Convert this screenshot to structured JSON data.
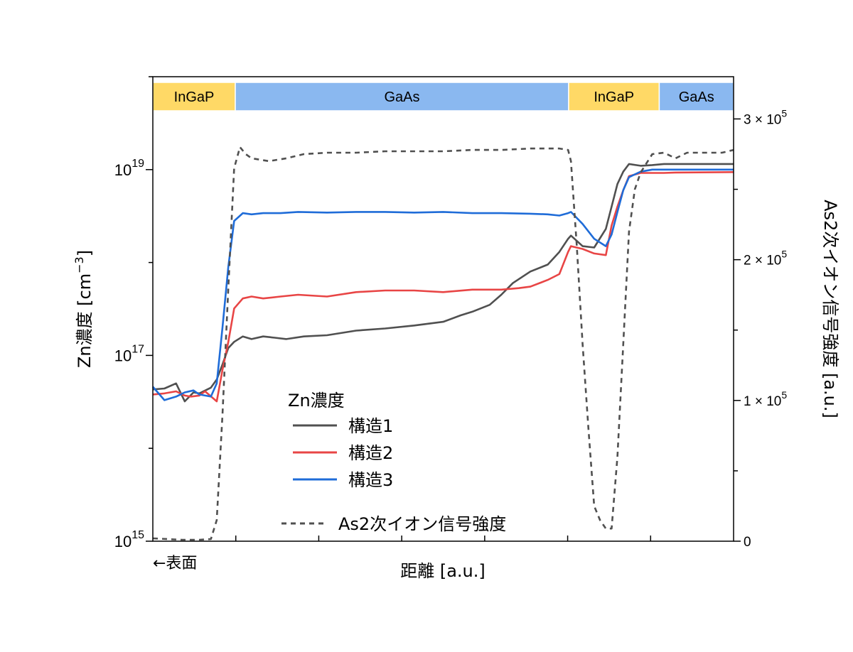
{
  "chart_data": {
    "type": "line",
    "xlabel": "距離 [a.u.]",
    "x_note": "←表面",
    "ylabel_left": "Zn濃度 [cm",
    "ylabel_left_sup": "−3",
    "ylabel_left_end": "]",
    "ylabel_right": "As2次イオン信号強度 [a.u.]",
    "left_axis": {
      "scale": "log",
      "ylim": [
        1000000000000000.0,
        1e+20
      ],
      "ticks": [
        {
          "value": 1000000000000000.0,
          "base": "10",
          "exp": "15"
        },
        {
          "value": 1e+17,
          "base": "10",
          "exp": "17"
        },
        {
          "value": 1e+19,
          "base": "10",
          "exp": "19"
        }
      ]
    },
    "right_axis": {
      "scale": "linear",
      "ylim": [
        0,
        330000
      ],
      "ticks": [
        {
          "value": 0,
          "text": "0",
          "exp": ""
        },
        {
          "value": 100000,
          "text": "1 × 10",
          "exp": "5"
        },
        {
          "value": 200000,
          "text": "2 × 10",
          "exp": "5"
        },
        {
          "value": 300000,
          "text": "3 × 10",
          "exp": "5"
        }
      ]
    },
    "xlim": [
      0,
      1
    ],
    "layers": [
      {
        "label": "InGaP",
        "from": 0.0,
        "to": 0.142,
        "color": "#FFD966"
      },
      {
        "label": "GaAs",
        "from": 0.142,
        "to": 0.716,
        "color": "#8AB8F0"
      },
      {
        "label": "InGaP",
        "from": 0.716,
        "to": 0.872,
        "color": "#FFD966"
      },
      {
        "label": "GaAs",
        "from": 0.872,
        "to": 1.0,
        "color": "#8AB8F0"
      }
    ],
    "legend_title": "Zn濃度",
    "series": [
      {
        "name": "構造1",
        "color": "#505050",
        "dash": false,
        "axis": "left",
        "x": [
          0,
          0.02,
          0.04,
          0.055,
          0.07,
          0.08,
          0.1,
          0.11,
          0.12,
          0.13,
          0.14,
          0.155,
          0.17,
          0.19,
          0.21,
          0.23,
          0.26,
          0.3,
          0.35,
          0.4,
          0.45,
          0.5,
          0.53,
          0.55,
          0.58,
          0.6,
          0.62,
          0.65,
          0.68,
          0.7,
          0.715,
          0.72,
          0.74,
          0.76,
          0.78,
          0.79,
          0.8,
          0.81,
          0.82,
          0.84,
          0.86,
          0.88,
          0.9,
          1.0
        ],
        "y": [
          4.3e+16,
          4.4e+16,
          5e+16,
          3.2e+16,
          4e+16,
          3.9e+16,
          4.5e+16,
          5.5e+16,
          8e+16,
          1.2e+17,
          1.4e+17,
          1.6e+17,
          1.5e+17,
          1.6e+17,
          1.55e+17,
          1.5e+17,
          1.6e+17,
          1.65e+17,
          1.85e+17,
          1.95e+17,
          2.1e+17,
          2.3e+17,
          2.7e+17,
          2.95e+17,
          3.5e+17,
          4.5e+17,
          6e+17,
          8e+17,
          9.5e+17,
          1.3e+18,
          1.8e+18,
          1.95e+18,
          1.5e+18,
          1.45e+18,
          2.3e+18,
          4e+18,
          7e+18,
          9.5e+18,
          1.15e+19,
          1.1e+19,
          1.12e+19,
          1.15e+19,
          1.15e+19,
          1.15e+19
        ]
      },
      {
        "name": "構造2",
        "color": "#E84545",
        "dash": false,
        "axis": "left",
        "x": [
          0,
          0.02,
          0.04,
          0.055,
          0.065,
          0.08,
          0.09,
          0.11,
          0.12,
          0.13,
          0.14,
          0.155,
          0.17,
          0.19,
          0.22,
          0.25,
          0.3,
          0.35,
          0.4,
          0.45,
          0.5,
          0.55,
          0.6,
          0.63,
          0.65,
          0.68,
          0.7,
          0.715,
          0.72,
          0.74,
          0.76,
          0.78,
          0.79,
          0.8,
          0.81,
          0.82,
          0.84,
          0.86,
          0.88,
          0.9,
          1.0
        ],
        "y": [
          3.8e+16,
          3.9e+16,
          4.1e+16,
          3.7e+16,
          3.6e+16,
          3.7e+16,
          4.1e+16,
          3.2e+16,
          7e+16,
          1.4e+17,
          3.2e+17,
          4.1e+17,
          4.3e+17,
          4.1e+17,
          4.3e+17,
          4.5e+17,
          4.3e+17,
          4.8e+17,
          5e+17,
          5e+17,
          4.8e+17,
          5.1e+17,
          5.1e+17,
          5.3e+17,
          5.5e+17,
          6.5e+17,
          7.5e+17,
          1.3e+18,
          1.5e+18,
          1.4e+18,
          1.25e+18,
          1.2e+18,
          2.5e+18,
          4e+18,
          6e+18,
          8.5e+18,
          9.2e+18,
          9.2e+18,
          9.2e+18,
          9.3e+18,
          9.4e+18
        ]
      },
      {
        "name": "構造3",
        "color": "#1F6CD8",
        "dash": false,
        "axis": "left",
        "x": [
          0,
          0.02,
          0.04,
          0.055,
          0.07,
          0.08,
          0.1,
          0.11,
          0.12,
          0.13,
          0.14,
          0.155,
          0.17,
          0.19,
          0.22,
          0.25,
          0.3,
          0.35,
          0.4,
          0.45,
          0.5,
          0.55,
          0.6,
          0.65,
          0.68,
          0.7,
          0.715,
          0.72,
          0.74,
          0.76,
          0.78,
          0.79,
          0.8,
          0.81,
          0.82,
          0.84,
          0.86,
          0.88,
          0.9,
          1.0
        ],
        "y": [
          4.6e+16,
          3.3e+16,
          3.6e+16,
          4e+16,
          4.2e+16,
          3.8e+16,
          3.6e+16,
          5e+16,
          2e+17,
          9e+17,
          2.8e+18,
          3.4e+18,
          3.3e+18,
          3.4e+18,
          3.4e+18,
          3.5e+18,
          3.45e+18,
          3.5e+18,
          3.5e+18,
          3.45e+18,
          3.5e+18,
          3.4e+18,
          3.4e+18,
          3.35e+18,
          3.3e+18,
          3.2e+18,
          3.4e+18,
          3.5e+18,
          2.6e+18,
          1.8e+18,
          1.5e+18,
          2e+18,
          3.5e+18,
          6e+18,
          8.3e+18,
          9.5e+18,
          1e+19,
          1e+19,
          1e+19,
          1e+19
        ]
      },
      {
        "name": "As2次イオン信号強度",
        "color": "#505050",
        "dash": true,
        "axis": "right",
        "x": [
          0,
          0.05,
          0.08,
          0.1,
          0.11,
          0.12,
          0.13,
          0.14,
          0.15,
          0.16,
          0.17,
          0.2,
          0.23,
          0.26,
          0.3,
          0.35,
          0.4,
          0.45,
          0.5,
          0.55,
          0.6,
          0.65,
          0.7,
          0.715,
          0.72,
          0.73,
          0.74,
          0.75,
          0.76,
          0.77,
          0.78,
          0.79,
          0.8,
          0.81,
          0.82,
          0.83,
          0.84,
          0.86,
          0.88,
          0.9,
          0.92,
          0.94,
          0.96,
          0.98,
          1.0
        ],
        "y": [
          2000,
          1000,
          1000,
          1500,
          15000,
          90000,
          180000,
          265000,
          280000,
          275000,
          272000,
          270000,
          272000,
          275000,
          276000,
          276000,
          277000,
          277000,
          277000,
          278000,
          278000,
          279000,
          279000,
          278000,
          270000,
          210000,
          140000,
          80000,
          25000,
          15000,
          9000,
          9000,
          60000,
          140000,
          220000,
          250000,
          262000,
          275000,
          276000,
          272000,
          276000,
          276000,
          276000,
          276000,
          278000
        ]
      }
    ],
    "legend_dash_label": "As2次イオン信号強度"
  }
}
